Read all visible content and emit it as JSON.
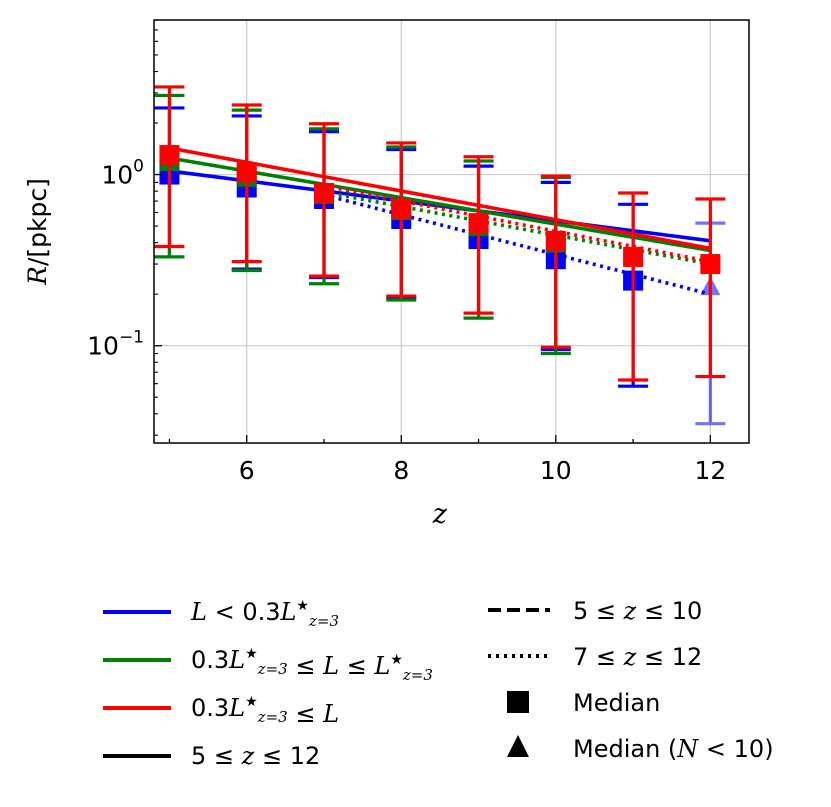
{
  "chart_data": {
    "type": "line",
    "xlabel": "z",
    "ylabel_prefix": "R",
    "ylabel_unit": "/[pkpc]",
    "y_scale": "log",
    "xlim": [
      4.8,
      12.5
    ],
    "ylim": [
      0.027,
      8.0
    ],
    "x_ticks": [
      6,
      8,
      10,
      12
    ],
    "x_tick_labels": [
      "6",
      "8",
      "10",
      "12"
    ],
    "y_ticks": [
      {
        "value": 1.0,
        "base": "10",
        "exp": "0"
      },
      {
        "value": 0.1,
        "base": "10",
        "exp": "−1"
      }
    ],
    "grid": true,
    "series": [
      {
        "name": "L<0.3L*_{z=3}",
        "color": "#0000ff",
        "fit_full": {
          "x": [
            5,
            12
          ],
          "y": [
            1.05,
            0.41
          ],
          "style": "solid"
        },
        "fit_high": {
          "x": [
            7,
            12
          ],
          "y": [
            0.76,
            0.2
          ],
          "style": "dotted"
        },
        "median": {
          "x": [
            5,
            6,
            7,
            8,
            9,
            10,
            11
          ],
          "y": [
            1.0,
            0.84,
            0.72,
            0.55,
            0.42,
            0.32,
            0.24
          ],
          "err_low": [
            0.33,
            0.28,
            0.25,
            0.19,
            0.145,
            0.095,
            0.058
          ],
          "err_high": [
            2.45,
            2.2,
            1.78,
            1.4,
            1.12,
            0.9,
            0.67
          ]
        },
        "median_low_n": {
          "x": [
            12
          ],
          "y": [
            0.22
          ],
          "err_low": [
            0.035
          ],
          "err_high": [
            0.52
          ]
        }
      },
      {
        "name": "0.3L*_{z=3}<=L<=L*_{z=3}",
        "color": "#008000",
        "fit_full": {
          "x": [
            5,
            12
          ],
          "y": [
            1.25,
            0.36
          ],
          "style": "solid"
        },
        "fit_high": {
          "x": [
            7,
            12
          ],
          "y": [
            0.79,
            0.3
          ],
          "style": "dotted"
        },
        "median": {
          "x": [
            5,
            6,
            7,
            8,
            9,
            10
          ],
          "y": [
            1.2,
            0.97,
            0.77,
            0.62,
            0.5,
            0.4
          ],
          "err_low": [
            0.33,
            0.275,
            0.23,
            0.185,
            0.145,
            0.09
          ],
          "err_high": [
            2.9,
            2.38,
            1.85,
            1.45,
            1.2,
            0.96
          ]
        }
      },
      {
        "name": "0.3L*_{z=3}<=L",
        "color": "#ff0000",
        "fit_full": {
          "x": [
            5,
            12
          ],
          "y": [
            1.43,
            0.37
          ],
          "style": "solid"
        },
        "fit_high": {
          "x": [
            7,
            12
          ],
          "y": [
            0.86,
            0.31
          ],
          "style": "dotted"
        },
        "median": {
          "x": [
            5,
            6,
            7,
            8,
            9,
            10,
            11,
            12
          ],
          "y": [
            1.3,
            1.03,
            0.78,
            0.63,
            0.52,
            0.41,
            0.33,
            0.3
          ],
          "err_low": [
            0.38,
            0.31,
            0.255,
            0.195,
            0.155,
            0.098,
            0.063,
            0.066
          ],
          "err_high": [
            3.25,
            2.55,
            1.98,
            1.53,
            1.27,
            0.98,
            0.78,
            0.72
          ]
        }
      }
    ]
  },
  "legend": {
    "left": [
      {
        "key": "blue",
        "color": "#0000ff",
        "style": "solid",
        "label": "L<0.3L*_{z=3}"
      },
      {
        "key": "green",
        "color": "#008000",
        "style": "solid",
        "label": "0.3L*_{z=3}≤L≤L*_{z=3}"
      },
      {
        "key": "red",
        "color": "#ff0000",
        "style": "solid",
        "label": "0.3L*_{z=3}≤L"
      },
      {
        "key": "black",
        "color": "#000000",
        "style": "solid",
        "label": "5≤z≤12"
      }
    ],
    "right": [
      {
        "key": "dashed",
        "style": "dashed",
        "label": "5≤z≤10"
      },
      {
        "key": "dotted",
        "style": "dotted",
        "label": "7≤z≤12"
      },
      {
        "key": "median",
        "marker": "square",
        "label": "Median"
      },
      {
        "key": "median-low-n",
        "marker": "triangle",
        "label": "Median (N<10)"
      }
    ],
    "text": {
      "L": "L",
      "lt": " < ",
      "le": " ≤ ",
      "coef": "0.3",
      "star": "★",
      "sub": "z=3",
      "z": "z",
      "five": "5",
      "ten": "10",
      "seven": "7",
      "twelve": "12",
      "median": "Median",
      "median_open": "Median (",
      "N": "N",
      "lt10": " < 10)"
    }
  }
}
